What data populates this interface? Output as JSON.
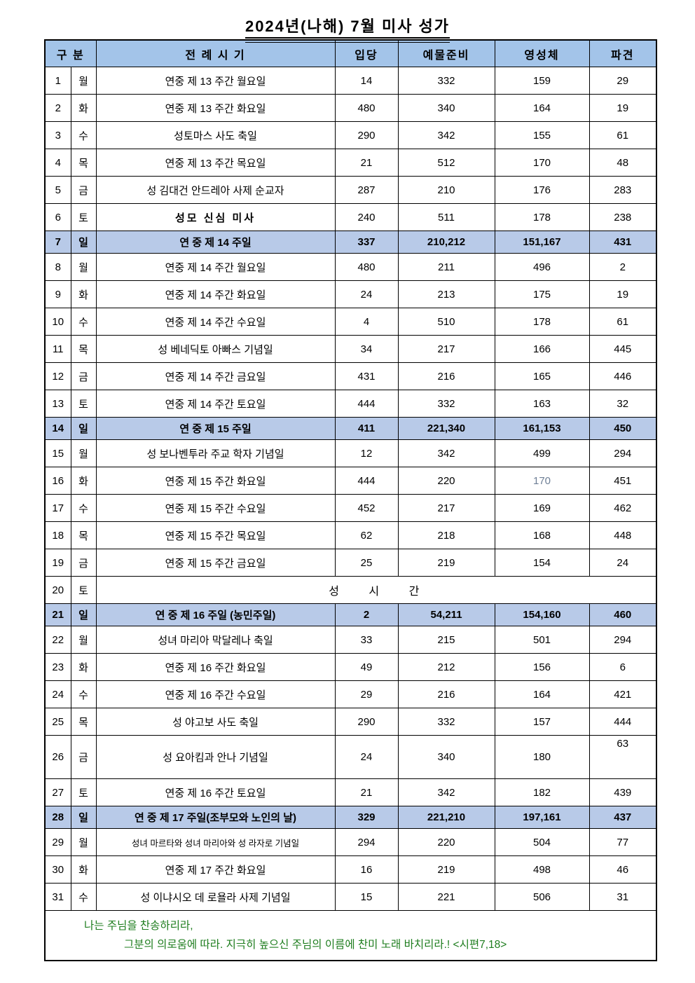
{
  "title": "2024년(나해) 7월  미사  성가",
  "colors": {
    "header_bg": "#A3C4E9",
    "sunday_bg": "#B8CAE8",
    "footer_green": "#1E7D1E",
    "muted_value_gray": "#6E7F96"
  },
  "table": {
    "headers": {
      "gubun": "구 분",
      "season": "전 례 시 기",
      "entrance": "입당",
      "offertory": "예물준비",
      "communion": "영성체",
      "dismissal": "파견"
    },
    "rows": [
      {
        "d": "1",
        "w": "월",
        "t": "연중 제 13 주간 월요일",
        "v": [
          "14",
          "332",
          "159",
          "29"
        ]
      },
      {
        "d": "2",
        "w": "화",
        "t": "연중 제 13 주간 화요일",
        "v": [
          "480",
          "340",
          "164",
          "19"
        ]
      },
      {
        "d": "3",
        "w": "수",
        "t": "성토마스 사도 축일",
        "v": [
          "290",
          "342",
          "155",
          "61"
        ]
      },
      {
        "d": "4",
        "w": "목",
        "t": "연중 제 13 주간 목요일",
        "v": [
          "21",
          "512",
          "170",
          "48"
        ]
      },
      {
        "d": "5",
        "w": "금",
        "t": "성 김대건 안드레아 사제 순교자",
        "v": [
          "287",
          "210",
          "176",
          "283"
        ]
      },
      {
        "d": "6",
        "w": "토",
        "t": "성모 신심 미사",
        "v": [
          "240",
          "511",
          "178",
          "238"
        ],
        "boldSeason": true
      },
      {
        "d": "7",
        "w": "일",
        "t": "연 중  제 14 주일",
        "v": [
          "337",
          "210,212",
          "151,167",
          "431"
        ],
        "hl": true
      },
      {
        "d": "8",
        "w": "월",
        "t": "연중  제 14 주간 월요일",
        "v": [
          "480",
          "211",
          "496",
          "2"
        ]
      },
      {
        "d": "9",
        "w": "화",
        "t": "연중  제 14 주간 화요일",
        "v": [
          "24",
          "213",
          "175",
          "19"
        ]
      },
      {
        "d": "10",
        "w": "수",
        "t": "연중  제 14 주간 수요일",
        "v": [
          "4",
          "510",
          "178",
          "61"
        ]
      },
      {
        "d": "11",
        "w": "목",
        "t": "성 베네딕토 아빠스 기념일",
        "v": [
          "34",
          "217",
          "166",
          "445"
        ]
      },
      {
        "d": "12",
        "w": "금",
        "t": "연중  제 14 주간 금요일",
        "v": [
          "431",
          "216",
          "165",
          "446"
        ]
      },
      {
        "d": "13",
        "w": "토",
        "t": "연중  제 14 주간 토요일",
        "v": [
          "444",
          "332",
          "163",
          "32"
        ]
      },
      {
        "d": "14",
        "w": "일",
        "t": "연 중  제 15 주일",
        "v": [
          "411",
          "221,340",
          "161,153",
          "450"
        ],
        "hl": true
      },
      {
        "d": "15",
        "w": "월",
        "t": "성 보나벤투라 주교 학자 기념일",
        "v": [
          "12",
          "342",
          "499",
          "294"
        ]
      },
      {
        "d": "16",
        "w": "화",
        "t": "연중  제 15 주간 화요일",
        "v": [
          "444",
          "220",
          "170",
          "451"
        ],
        "grayCol": 2
      },
      {
        "d": "17",
        "w": "수",
        "t": "연중  제 15 주간 수요일",
        "v": [
          "452",
          "217",
          "169",
          "462"
        ]
      },
      {
        "d": "18",
        "w": "목",
        "t": "연중  제 15 주간 목요일",
        "v": [
          "62",
          "218",
          "168",
          "448"
        ]
      },
      {
        "d": "19",
        "w": "금",
        "t": "연중  제 15 주간 금요일",
        "v": [
          "25",
          "219",
          "154",
          "24"
        ]
      },
      {
        "d": "20",
        "w": "토",
        "merged": "성 시 간"
      },
      {
        "d": "21",
        "w": "일",
        "t": "연 중  제 16 주일   (농민주일)",
        "v": [
          "2",
          "54,211",
          "154,160",
          "460"
        ],
        "hl": true
      },
      {
        "d": "22",
        "w": "월",
        "t": "성녀  마리아  막달레나  축일",
        "v": [
          "33",
          "215",
          "501",
          "294"
        ]
      },
      {
        "d": "23",
        "w": "화",
        "t": "연중  제 16 주간 화요일",
        "v": [
          "49",
          "212",
          "156",
          "6"
        ]
      },
      {
        "d": "24",
        "w": "수",
        "t": "연중  제 16 주간 수요일",
        "v": [
          "29",
          "216",
          "164",
          "421"
        ]
      },
      {
        "d": "25",
        "w": "목",
        "t": "성 야고보 사도 축일",
        "v": [
          "290",
          "332",
          "157",
          "444"
        ]
      },
      {
        "d": "26",
        "w": "금",
        "t": "성  요아킴과  안나  기념일",
        "v": [
          "24",
          "340",
          "180",
          "63"
        ],
        "tall": true,
        "topCol": 3
      },
      {
        "d": "27",
        "w": "토",
        "t": "연중  제 16 주간 토요일",
        "v": [
          "21",
          "342",
          "182",
          "439"
        ]
      },
      {
        "d": "28",
        "w": "일",
        "t": "연 중  제 17 주일(조부모와 노인의 날)",
        "v": [
          "329",
          "221,210",
          "197,161",
          "437"
        ],
        "hl": true
      },
      {
        "d": "29",
        "w": "월",
        "t": "성녀 마르타와  성녀 마리아와 성 라자로 기념일",
        "v": [
          "294",
          "220",
          "504",
          "77"
        ],
        "smallSeason": true
      },
      {
        "d": "30",
        "w": "화",
        "t": "연중  제 17 주간 화요일",
        "v": [
          "16",
          "219",
          "498",
          "46"
        ]
      },
      {
        "d": "31",
        "w": "수",
        "t": "성 이냐시오 데  로욜라  사제 기념일",
        "v": [
          "15",
          "221",
          "506",
          "31"
        ]
      }
    ]
  },
  "footer": {
    "line1": "나는 주님을 찬송하리라,",
    "line2": "그분의 의로움에 따라. 지극히 높으신 주님의 이름에 찬미 노래 바치리라.! <시편7,18>"
  }
}
